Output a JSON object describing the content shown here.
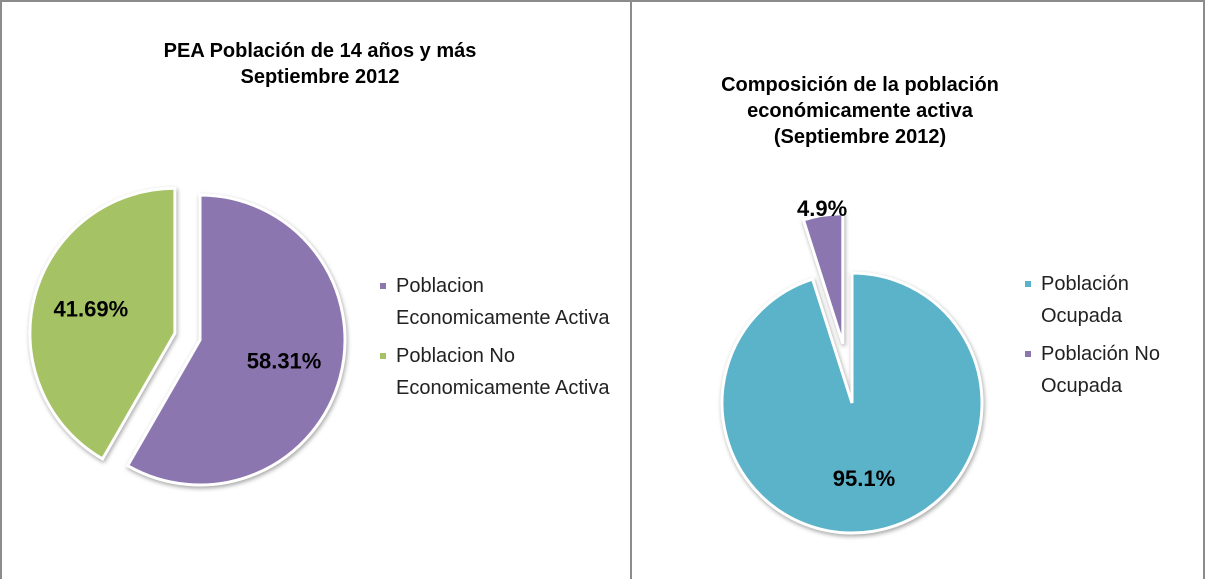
{
  "chart_data": [
    {
      "type": "pie",
      "title": "PEA Población de 14 años y más Septiembre 2012",
      "categories": [
        "Poblacion Economicamente Activa",
        "Poblacion No Economicamente Activa"
      ],
      "values": [
        58.31,
        41.69
      ],
      "value_labels": [
        "58.31%",
        "41.69%"
      ],
      "colors": [
        "#8c76b0",
        "#a5c265"
      ]
    },
    {
      "type": "pie",
      "title": "Composición de la población económicamente activa (Septiembre 2012)",
      "categories": [
        "Población Ocupada",
        "Población No Ocupada"
      ],
      "values": [
        95.1,
        4.9
      ],
      "value_labels": [
        "95.1%",
        "4.9%"
      ],
      "colors": [
        "#5bb3c9",
        "#8c76b0"
      ]
    }
  ]
}
